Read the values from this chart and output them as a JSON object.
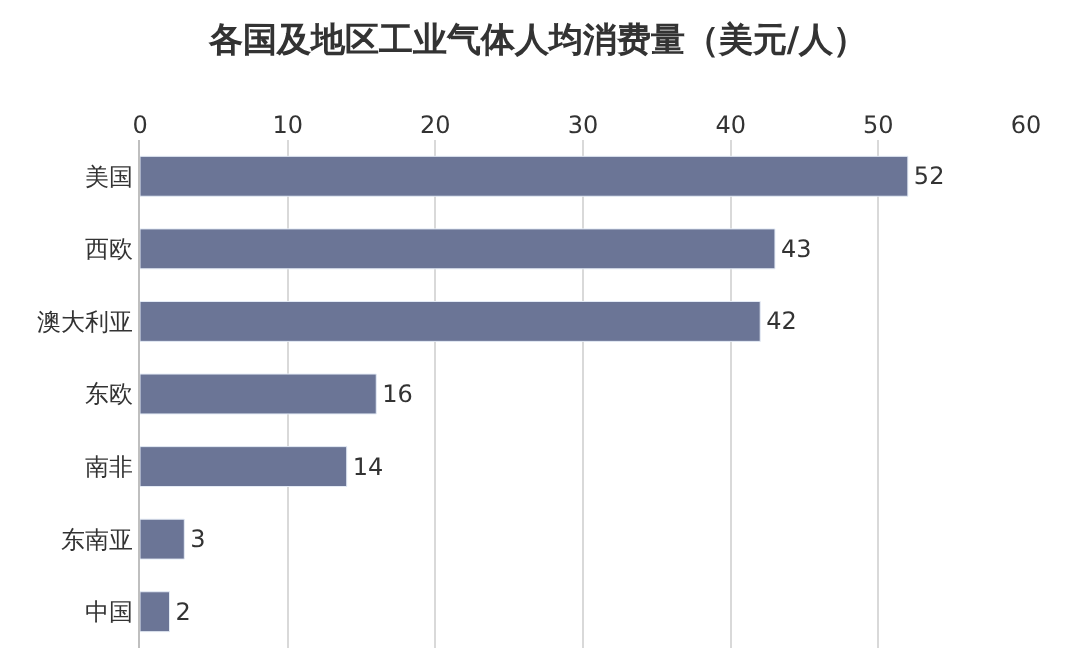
{
  "chart_data": {
    "type": "bar",
    "orientation": "horizontal",
    "title": "各国及地区工业气体人均消费量（美元/人）",
    "categories": [
      "美国",
      "西欧",
      "澳大利亚",
      "东欧",
      "南非",
      "东南亚",
      "中国"
    ],
    "values": [
      52,
      43,
      42,
      16,
      14,
      3,
      2
    ],
    "color": "#6b7596",
    "xlim": [
      0,
      60
    ],
    "xticks": [
      0,
      10,
      20,
      30,
      40,
      50,
      60
    ],
    "grid": "x",
    "data_labels": true,
    "legend": false
  }
}
